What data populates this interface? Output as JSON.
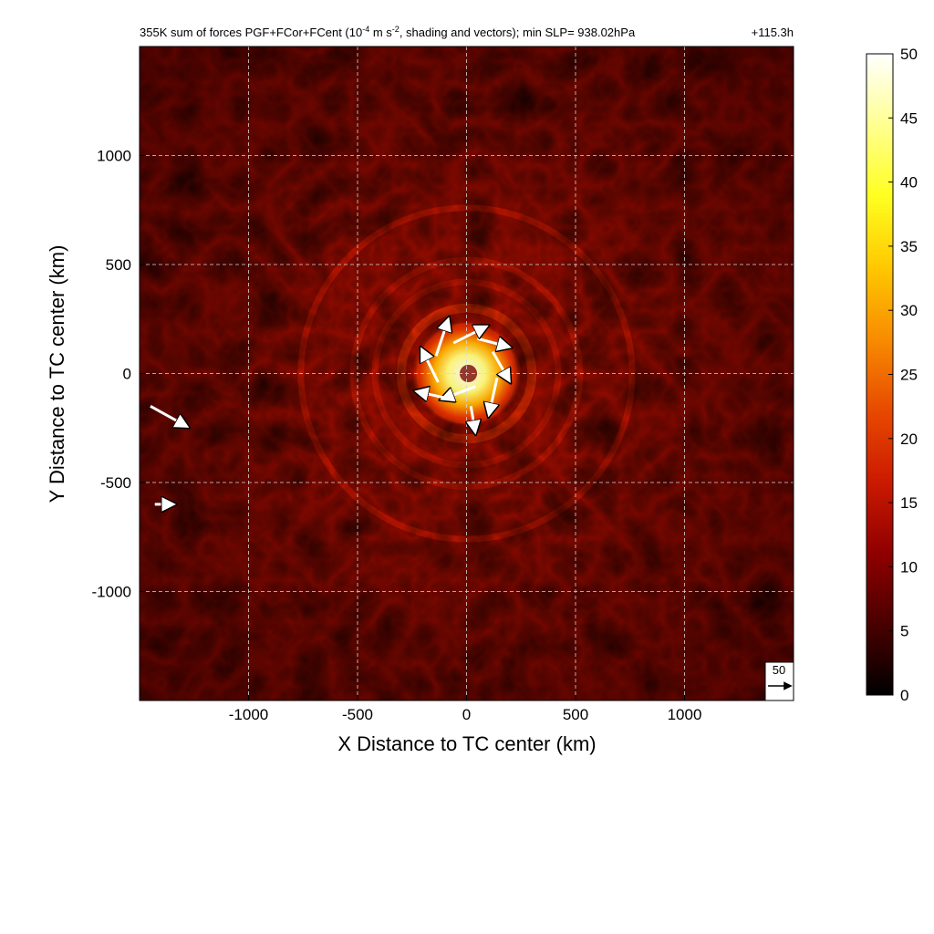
{
  "chart_data": {
    "type": "heatmap",
    "title": {
      "prefix": "355K sum of forces PGF+FCor+FCent (10",
      "superscript_1": "-4",
      "middle": " m s",
      "superscript_2": "-2",
      "suffix": ", shading and vectors); min SLP= 938.02hPa"
    },
    "forecast_time": "+115.3h",
    "xlabel": "X Distance to TC center (km)",
    "ylabel": "Y Distance to TC center (km)",
    "xlim": [
      -1500,
      1500
    ],
    "ylim": [
      -1500,
      1500
    ],
    "x_ticks": [
      -1000,
      -500,
      0,
      500,
      1000
    ],
    "x_tick_labels": [
      "-1000",
      "-500",
      "0",
      "500",
      "1000"
    ],
    "y_ticks": [
      -1000,
      -500,
      0,
      500,
      1000
    ],
    "y_tick_labels": [
      "-1000",
      "-500",
      "0",
      "500",
      "1000"
    ],
    "grid": true,
    "colorbar": {
      "range": [
        0,
        50
      ],
      "ticks": [
        0,
        5,
        10,
        15,
        20,
        25,
        30,
        35,
        40,
        45,
        50
      ],
      "tick_labels": [
        "0",
        "5",
        "10",
        "15",
        "20",
        "25",
        "30",
        "35",
        "40",
        "45",
        "50"
      ],
      "colormap": [
        "#000000",
        "#4a0000",
        "#900000",
        "#cc1a00",
        "#e84a00",
        "#f88c00",
        "#ffc800",
        "#ffff20",
        "#ffff90",
        "#ffffff"
      ]
    },
    "reference_vector": {
      "label": "50",
      "magnitude": 50
    },
    "field_features": {
      "center": [
        0,
        0
      ],
      "inner_core_peak": 50,
      "rings_km": [
        210,
        300,
        420,
        520,
        760
      ],
      "background_level": 6
    },
    "vectors": [
      {
        "x": 50,
        "y": 160,
        "u": 38,
        "v": -10
      },
      {
        "x": 120,
        "y": 100,
        "u": 20,
        "v": -35
      },
      {
        "x": 140,
        "y": -20,
        "u": -10,
        "v": -45
      },
      {
        "x": 40,
        "y": -60,
        "u": -40,
        "v": -15
      },
      {
        "x": -60,
        "y": -120,
        "u": -45,
        "v": 10
      },
      {
        "x": -130,
        "y": -40,
        "u": -20,
        "v": 40
      },
      {
        "x": -140,
        "y": 80,
        "u": 15,
        "v": 45
      },
      {
        "x": -60,
        "y": 140,
        "u": 40,
        "v": 20
      },
      {
        "x": 20,
        "y": -150,
        "u": 5,
        "v": -30
      },
      {
        "x": -1450,
        "y": -150,
        "u": 45,
        "v": -25
      },
      {
        "x": -1430,
        "y": -600,
        "u": 20,
        "v": 0
      }
    ]
  }
}
